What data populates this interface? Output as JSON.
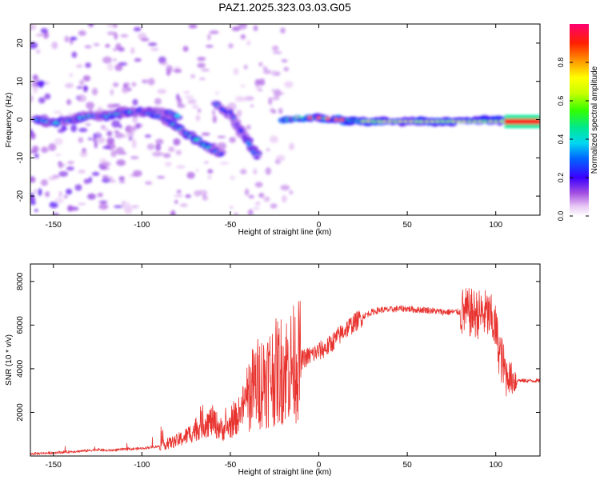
{
  "figure": {
    "title": "PAZ1.2025.323.03.03.G05"
  },
  "chart_data": [
    {
      "type": "heatmap",
      "xlabel": "Height of straight line (km)",
      "ylabel": "Frequency (Hz)",
      "xlim": [
        -163,
        125
      ],
      "ylim": [
        -25,
        25
      ],
      "xticks": [
        -150,
        -100,
        -50,
        0,
        50,
        100
      ],
      "yticks": [
        -20,
        -10,
        0,
        10,
        20
      ],
      "colorbar": {
        "label": "Normalized spectral amplitude",
        "range": [
          0,
          1
        ],
        "ticks": [
          "0.0",
          "0.2",
          "0.4",
          "0.6",
          "0.8"
        ]
      },
      "ridges": [
        {
          "x": [
            -160,
            -150,
            -140,
            -130,
            -120,
            -110,
            -100,
            -95,
            -90,
            -85,
            -80
          ],
          "y": [
            0,
            -1,
            0,
            1,
            1,
            2,
            2,
            2,
            2,
            2,
            1
          ]
        },
        {
          "x": [
            -100,
            -90,
            -80,
            -70,
            -60,
            -55
          ],
          "y": [
            2,
            1,
            -2,
            -5,
            -8,
            -9
          ]
        },
        {
          "x": [
            -58,
            -50,
            -45,
            -40,
            -35
          ],
          "y": [
            4,
            1,
            -3,
            -6,
            -9
          ]
        },
        {
          "x": [
            -50,
            -45,
            -40,
            -35
          ],
          "y": [
            2,
            -2,
            -6,
            -10
          ]
        },
        {
          "x": [
            -20,
            -10,
            0,
            10,
            20,
            30,
            50,
            70,
            90,
            105
          ],
          "y": [
            0,
            0.5,
            0.5,
            0,
            -0.3,
            -0.5,
            -0.5,
            -0.5,
            -0.3,
            -0.2
          ]
        },
        {
          "x": [
            105,
            125
          ],
          "y": [
            -0.5,
            -0.5
          ]
        }
      ]
    },
    {
      "type": "line",
      "xlabel": "Height of straight line (km)",
      "ylabel": "SNR (10 * v/v)",
      "xlim": [
        -163,
        125
      ],
      "ylim": [
        0,
        8800
      ],
      "xticks": [
        -150,
        -100,
        -50,
        0,
        50,
        100
      ],
      "yticks": [
        2000,
        4000,
        6000,
        8000
      ],
      "line_color": "#e8322e",
      "series": [
        {
          "x": [
            -163,
            -150,
            -140,
            -130,
            -125,
            -120,
            -110,
            -100,
            -90,
            -80,
            -75,
            -70,
            -65,
            -60,
            -55,
            -50,
            -45,
            -40,
            -35,
            -30,
            -25,
            -20,
            -15,
            -10,
            -5,
            0,
            5,
            10,
            15,
            20,
            25,
            30,
            35,
            40,
            45,
            50,
            55,
            60,
            65,
            70,
            75,
            80,
            85,
            90,
            95,
            98,
            100,
            102,
            105,
            108,
            110,
            115,
            120,
            125
          ],
          "y": [
            100,
            150,
            200,
            250,
            300,
            250,
            300,
            350,
            450,
            700,
            900,
            1200,
            1500,
            1600,
            1200,
            1400,
            1900,
            2800,
            3300,
            3600,
            3800,
            4000,
            4200,
            4400,
            4600,
            4800,
            5000,
            5400,
            5800,
            6100,
            6400,
            6600,
            6700,
            6700,
            6750,
            6750,
            6700,
            6700,
            6650,
            6600,
            6600,
            6600,
            6550,
            6500,
            6500,
            6200,
            5800,
            4800,
            3900,
            3600,
            3500,
            3450,
            3450,
            3450
          ]
        }
      ]
    }
  ]
}
